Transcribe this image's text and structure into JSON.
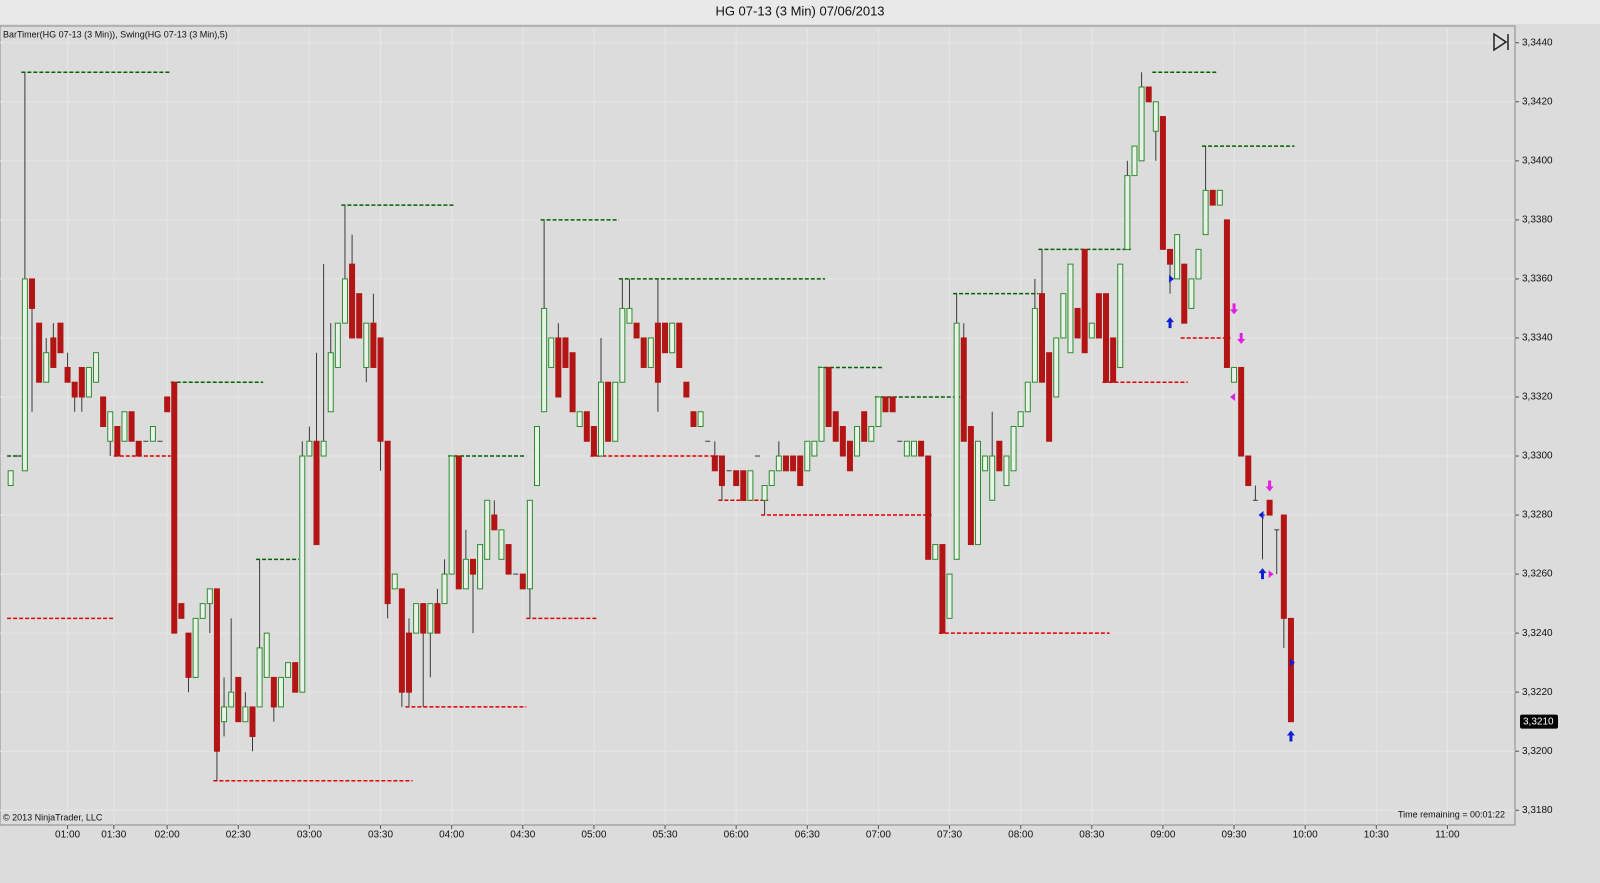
{
  "chart_data": {
    "type": "candlestick",
    "title": "HG 07-13 (3 Min)  07/06/2013",
    "indicator_label": "BarTimer(HG 07-13 (3 Min)), Swing(HG 07-13 (3 Min),5)",
    "copyright": "© 2013 NinjaTrader, LLC",
    "status": "Time remaining = 00:01:22",
    "last": {
      "value": 3.321,
      "label": "3,3210"
    },
    "up_color": "#2e8b2e",
    "down_color": "#b31414",
    "wick_color": "#3a3a3a",
    "swing_high_color": "#006400",
    "swing_low_color": "#e00000",
    "grid": true,
    "xlim": [
      -1.5,
      211.5
    ],
    "xticks": [
      {
        "value": 8,
        "label": "01:00"
      },
      {
        "value": 14.5,
        "label": "01:30"
      },
      {
        "value": 22,
        "label": "02:00"
      },
      {
        "value": 32,
        "label": "02:30"
      },
      {
        "value": 42,
        "label": "03:00"
      },
      {
        "value": 52,
        "label": "03:30"
      },
      {
        "value": 62,
        "label": "04:00"
      },
      {
        "value": 72,
        "label": "04:30"
      },
      {
        "value": 82,
        "label": "05:00"
      },
      {
        "value": 92,
        "label": "05:30"
      },
      {
        "value": 102,
        "label": "06:00"
      },
      {
        "value": 112,
        "label": "06:30"
      },
      {
        "value": 122,
        "label": "07:00"
      },
      {
        "value": 132,
        "label": "07:30"
      },
      {
        "value": 142,
        "label": "08:00"
      },
      {
        "value": 152,
        "label": "08:30"
      },
      {
        "value": 162,
        "label": "09:00"
      },
      {
        "value": 172,
        "label": "09:30"
      },
      {
        "value": 182,
        "label": "10:00"
      },
      {
        "value": 192,
        "label": "10:30"
      },
      {
        "value": 202,
        "label": "11:00"
      }
    ],
    "ylim": [
      3.3175,
      3.3445
    ],
    "yticks": [
      {
        "value": 3.318,
        "label": "3,3180"
      },
      {
        "value": 3.32,
        "label": "3,3200"
      },
      {
        "value": 3.322,
        "label": "3,3220"
      },
      {
        "value": 3.324,
        "label": "3,3240"
      },
      {
        "value": 3.326,
        "label": "3,3260"
      },
      {
        "value": 3.328,
        "label": "3,3280"
      },
      {
        "value": 3.33,
        "label": "3,3300"
      },
      {
        "value": 3.332,
        "label": "3,3320"
      },
      {
        "value": 3.334,
        "label": "3,3340"
      },
      {
        "value": 3.336,
        "label": "3,3360"
      },
      {
        "value": 3.338,
        "label": "3,3380"
      },
      {
        "value": 3.34,
        "label": "3,3400"
      },
      {
        "value": 3.342,
        "label": "3,3420"
      },
      {
        "value": 3.344,
        "label": "3,3440"
      }
    ],
    "open": [
      3.329,
      3.33,
      3.3295,
      3.336,
      3.3345,
      3.3325,
      3.334,
      3.3345,
      3.333,
      3.3325,
      3.333,
      3.332,
      3.3325,
      3.332,
      3.3305,
      3.331,
      3.3305,
      3.3315,
      3.3305,
      3.3305,
      3.3305,
      3.3305,
      3.332,
      3.3325,
      3.325,
      3.324,
      3.3225,
      3.3245,
      3.325,
      3.3255,
      3.321,
      3.3215,
      3.3225,
      3.321,
      3.3215,
      3.3215,
      3.3225,
      3.3225,
      3.3215,
      3.3225,
      3.323,
      3.322,
      3.33,
      3.3305,
      3.33,
      3.3315,
      3.333,
      3.3345,
      3.3365,
      3.3355,
      3.333,
      3.3345,
      3.334,
      3.3305,
      3.3255,
      3.3255,
      3.324,
      3.324,
      3.325,
      3.324,
      3.325,
      3.325,
      3.326,
      3.33,
      3.3255,
      3.3265,
      3.3255,
      3.3265,
      3.328,
      3.3265,
      3.327,
      3.326,
      3.326,
      3.3255,
      3.329,
      3.3315,
      3.333,
      3.334,
      3.334,
      3.3335,
      3.331,
      3.3315,
      3.331,
      3.33,
      3.3325,
      3.3305,
      3.3325,
      3.3345,
      3.3345,
      3.334,
      3.333,
      3.3345,
      3.3345,
      3.3335,
      3.3345,
      3.3325,
      3.3315,
      3.331,
      3.3305,
      3.33,
      3.33,
      3.3295,
      3.3295,
      3.3295,
      3.3285,
      3.33,
      3.3285,
      3.329,
      3.3295,
      3.33,
      3.33,
      3.33,
      3.3295,
      3.33,
      3.3305,
      3.333,
      3.3315,
      3.331,
      3.3305,
      3.33,
      3.3315,
      3.3305,
      3.331,
      3.332,
      3.332,
      3.3305,
      3.33,
      3.33,
      3.3305,
      3.33,
      3.3265,
      3.327,
      3.3245,
      3.3265,
      3.334,
      3.331,
      3.327,
      3.3295,
      3.3285,
      3.3305,
      3.329,
      3.3295,
      3.331,
      3.3315,
      3.3325,
      3.3355,
      3.3335,
      3.332,
      3.334,
      3.3335,
      3.335,
      3.337,
      3.334,
      3.3355,
      3.3355,
      3.334,
      3.333,
      3.337,
      3.3395,
      3.34,
      3.3425,
      3.341,
      3.3415,
      3.337,
      3.336,
      3.3365,
      3.335,
      3.336,
      3.3375,
      3.339,
      3.3385,
      3.338,
      3.3325,
      3.333,
      3.33,
      3.3285,
      3.328,
      3.3285,
      3.3275,
      3.328,
      3.3245
    ],
    "high": [
      3.3295,
      3.33,
      3.343,
      3.336,
      3.3345,
      3.334,
      3.3345,
      3.3345,
      3.3335,
      3.3325,
      3.333,
      3.333,
      3.3335,
      3.332,
      3.3315,
      3.331,
      3.3315,
      3.3315,
      3.3305,
      3.3305,
      3.331,
      3.3305,
      3.332,
      3.3325,
      3.325,
      3.324,
      3.3245,
      3.325,
      3.3255,
      3.3255,
      3.3225,
      3.3245,
      3.3225,
      3.322,
      3.3215,
      3.3265,
      3.324,
      3.3225,
      3.3225,
      3.323,
      3.323,
      3.3305,
      3.331,
      3.3335,
      3.3365,
      3.3345,
      3.3345,
      3.3385,
      3.3375,
      3.3355,
      3.3345,
      3.3355,
      3.334,
      3.3305,
      3.326,
      3.3255,
      3.3245,
      3.325,
      3.325,
      3.325,
      3.3255,
      3.3265,
      3.33,
      3.33,
      3.3275,
      3.3265,
      3.327,
      3.3285,
      3.3285,
      3.3275,
      3.327,
      3.326,
      3.326,
      3.3285,
      3.331,
      3.338,
      3.334,
      3.3345,
      3.334,
      3.3335,
      3.3315,
      3.3315,
      3.331,
      3.334,
      3.3325,
      3.3325,
      3.336,
      3.336,
      3.3345,
      3.334,
      3.334,
      3.336,
      3.3345,
      3.3345,
      3.3345,
      3.3325,
      3.3315,
      3.3315,
      3.3305,
      3.3305,
      3.33,
      3.3295,
      3.3295,
      3.3295,
      3.3295,
      3.33,
      3.329,
      3.3295,
      3.3305,
      3.33,
      3.33,
      3.33,
      3.3305,
      3.3305,
      3.333,
      3.333,
      3.3315,
      3.331,
      3.3305,
      3.331,
      3.3315,
      3.331,
      3.332,
      3.332,
      3.332,
      3.3305,
      3.3305,
      3.3305,
      3.3305,
      3.33,
      3.327,
      3.327,
      3.326,
      3.3355,
      3.3345,
      3.331,
      3.3305,
      3.33,
      3.3315,
      3.3305,
      3.33,
      3.331,
      3.3315,
      3.3325,
      3.336,
      3.337,
      3.3335,
      3.334,
      3.3355,
      3.3365,
      3.335,
      3.337,
      3.3345,
      3.3355,
      3.3355,
      3.334,
      3.3365,
      3.34,
      3.3405,
      3.343,
      3.3425,
      3.342,
      3.3415,
      3.337,
      3.3375,
      3.3365,
      3.336,
      3.337,
      3.3405,
      3.339,
      3.339,
      3.338,
      3.333,
      3.333,
      3.33,
      3.329,
      3.328,
      3.3285,
      3.3275,
      3.328,
      3.3245
    ],
    "low": [
      3.329,
      3.33,
      3.3295,
      3.3315,
      3.3325,
      3.3325,
      3.333,
      3.3335,
      3.3325,
      3.3315,
      3.3315,
      3.332,
      3.3325,
      3.331,
      3.33,
      3.33,
      3.3305,
      3.3305,
      3.33,
      3.3305,
      3.3305,
      3.3305,
      3.3315,
      3.324,
      3.3245,
      3.322,
      3.3225,
      3.3245,
      3.324,
      3.319,
      3.3205,
      3.3215,
      3.321,
      3.321,
      3.32,
      3.3215,
      3.3225,
      3.321,
      3.3215,
      3.3225,
      3.322,
      3.322,
      3.33,
      3.327,
      3.33,
      3.3315,
      3.333,
      3.3345,
      3.334,
      3.334,
      3.3325,
      3.333,
      3.3295,
      3.3245,
      3.3255,
      3.3215,
      3.3215,
      3.324,
      3.3215,
      3.3225,
      3.324,
      3.325,
      3.326,
      3.3255,
      3.3255,
      3.324,
      3.3255,
      3.3265,
      3.3275,
      3.3265,
      3.326,
      3.326,
      3.3255,
      3.3245,
      3.329,
      3.3315,
      3.333,
      3.332,
      3.333,
      3.3315,
      3.331,
      3.3305,
      3.33,
      3.33,
      3.3305,
      3.3305,
      3.3325,
      3.3345,
      3.334,
      3.333,
      3.333,
      3.3315,
      3.3335,
      3.3335,
      3.333,
      3.332,
      3.331,
      3.331,
      3.3305,
      3.3295,
      3.3285,
      3.3295,
      3.329,
      3.3285,
      3.3285,
      3.33,
      3.328,
      3.329,
      3.3295,
      3.3295,
      3.3295,
      3.329,
      3.3295,
      3.33,
      3.3305,
      3.331,
      3.3305,
      3.33,
      3.3295,
      3.33,
      3.3305,
      3.3305,
      3.331,
      3.3315,
      3.3315,
      3.3305,
      3.33,
      3.33,
      3.33,
      3.3265,
      3.3265,
      3.324,
      3.3245,
      3.3265,
      3.3305,
      3.327,
      3.327,
      3.3295,
      3.3285,
      3.3295,
      3.329,
      3.3295,
      3.331,
      3.3315,
      3.3325,
      3.3325,
      3.3305,
      3.332,
      3.334,
      3.3335,
      3.334,
      3.3335,
      3.334,
      3.334,
      3.3325,
      3.3325,
      3.333,
      3.337,
      3.3395,
      3.34,
      3.342,
      3.34,
      3.337,
      3.3355,
      3.336,
      3.3345,
      3.335,
      3.336,
      3.3375,
      3.3385,
      3.3385,
      3.333,
      3.3325,
      3.33,
      3.329,
      3.3285,
      3.3265,
      3.328,
      3.326,
      3.3235,
      3.321
    ],
    "close": [
      3.3295,
      3.33,
      3.336,
      3.335,
      3.3325,
      3.3335,
      3.333,
      3.3335,
      3.3325,
      3.332,
      3.332,
      3.333,
      3.3335,
      3.331,
      3.3315,
      3.33,
      3.3315,
      3.3305,
      3.33,
      3.3305,
      3.331,
      3.3305,
      3.3315,
      3.324,
      3.3245,
      3.3225,
      3.3245,
      3.325,
      3.3255,
      3.32,
      3.3215,
      3.322,
      3.321,
      3.3215,
      3.3205,
      3.3235,
      3.324,
      3.3215,
      3.3225,
      3.323,
      3.322,
      3.33,
      3.3305,
      3.327,
      3.3305,
      3.3335,
      3.3345,
      3.336,
      3.334,
      3.334,
      3.3345,
      3.333,
      3.3305,
      3.325,
      3.326,
      3.322,
      3.322,
      3.325,
      3.324,
      3.325,
      3.324,
      3.326,
      3.33,
      3.3255,
      3.3265,
      3.326,
      3.327,
      3.3285,
      3.3275,
      3.3275,
      3.326,
      3.326,
      3.3255,
      3.3285,
      3.331,
      3.335,
      3.334,
      3.332,
      3.333,
      3.3315,
      3.3315,
      3.3305,
      3.33,
      3.3325,
      3.3305,
      3.3325,
      3.335,
      3.335,
      3.334,
      3.333,
      3.334,
      3.3325,
      3.3335,
      3.3345,
      3.333,
      3.332,
      3.331,
      3.3315,
      3.3305,
      3.3295,
      3.329,
      3.3295,
      3.329,
      3.3285,
      3.3295,
      3.33,
      3.329,
      3.3295,
      3.33,
      3.3295,
      3.3295,
      3.329,
      3.3305,
      3.3305,
      3.333,
      3.331,
      3.3305,
      3.33,
      3.3295,
      3.331,
      3.3305,
      3.331,
      3.332,
      3.3315,
      3.3315,
      3.3305,
      3.3305,
      3.3305,
      3.33,
      3.3265,
      3.327,
      3.324,
      3.326,
      3.3345,
      3.3305,
      3.327,
      3.3305,
      3.33,
      3.33,
      3.3295,
      3.33,
      3.331,
      3.3315,
      3.3325,
      3.335,
      3.3325,
      3.3305,
      3.334,
      3.3355,
      3.3365,
      3.334,
      3.3335,
      3.3345,
      3.334,
      3.3325,
      3.3325,
      3.3365,
      3.3395,
      3.3405,
      3.3425,
      3.342,
      3.342,
      3.337,
      3.3365,
      3.3375,
      3.3345,
      3.336,
      3.337,
      3.339,
      3.3385,
      3.339,
      3.333,
      3.333,
      3.33,
      3.329,
      3.3285,
      3.328,
      3.328,
      3.3275,
      3.3245,
      3.321
    ],
    "swing_highs": [
      {
        "value": 3.33,
        "from": 0,
        "to": 1
      },
      {
        "value": 3.343,
        "from": 2,
        "to": 22
      },
      {
        "value": 3.3325,
        "from": 23,
        "to": 35
      },
      {
        "value": 3.3265,
        "from": 35,
        "to": 40
      },
      {
        "value": 3.3385,
        "from": 47,
        "to": 62
      },
      {
        "value": 3.33,
        "from": 62,
        "to": 72
      },
      {
        "value": 3.338,
        "from": 75,
        "to": 85
      },
      {
        "value": 3.336,
        "from": 86,
        "to": 114
      },
      {
        "value": 3.333,
        "from": 114,
        "to": 122
      },
      {
        "value": 3.332,
        "from": 122,
        "to": 133
      },
      {
        "value": 3.3355,
        "from": 133,
        "to": 144
      },
      {
        "value": 3.337,
        "from": 145,
        "to": 157
      },
      {
        "value": 3.343,
        "from": 161,
        "to": 169
      },
      {
        "value": 3.3405,
        "from": 168,
        "to": 180
      }
    ],
    "swing_lows": [
      {
        "value": 3.3245,
        "from": 0,
        "to": 14
      },
      {
        "value": 3.33,
        "from": 15,
        "to": 22
      },
      {
        "value": 3.319,
        "from": 29,
        "to": 56
      },
      {
        "value": 3.3215,
        "from": 56,
        "to": 72
      },
      {
        "value": 3.3245,
        "from": 73,
        "to": 82
      },
      {
        "value": 3.33,
        "from": 82,
        "to": 99
      },
      {
        "value": 3.3285,
        "from": 100,
        "to": 106
      },
      {
        "value": 3.328,
        "from": 106,
        "to": 129
      },
      {
        "value": 3.324,
        "from": 131,
        "to": 154
      },
      {
        "value": 3.3325,
        "from": 154,
        "to": 165
      },
      {
        "value": 3.334,
        "from": 165,
        "to": 171
      }
    ],
    "signals": [
      {
        "bar": 163,
        "value": 3.336,
        "dir": "right",
        "color": "#1020d0"
      },
      {
        "bar": 163,
        "value": 3.3345,
        "dir": "up",
        "color": "#1020d0"
      },
      {
        "bar": 172,
        "value": 3.335,
        "dir": "down",
        "color": "#e020e0"
      },
      {
        "bar": 173,
        "value": 3.334,
        "dir": "down",
        "color": "#e020e0"
      },
      {
        "bar": 172,
        "value": 3.332,
        "dir": "left",
        "color": "#e020e0"
      },
      {
        "bar": 177,
        "value": 3.329,
        "dir": "down",
        "color": "#e020e0"
      },
      {
        "bar": 176,
        "value": 3.328,
        "dir": "left",
        "color": "#1020d0"
      },
      {
        "bar": 176,
        "value": 3.326,
        "dir": "up",
        "color": "#1020d0"
      },
      {
        "bar": 177,
        "value": 3.326,
        "dir": "right",
        "color": "#e020e0"
      },
      {
        "bar": 180,
        "value": 3.323,
        "dir": "right",
        "color": "#1020d0"
      },
      {
        "bar": 180,
        "value": 3.3205,
        "dir": "up",
        "color": "#1020d0"
      }
    ]
  }
}
